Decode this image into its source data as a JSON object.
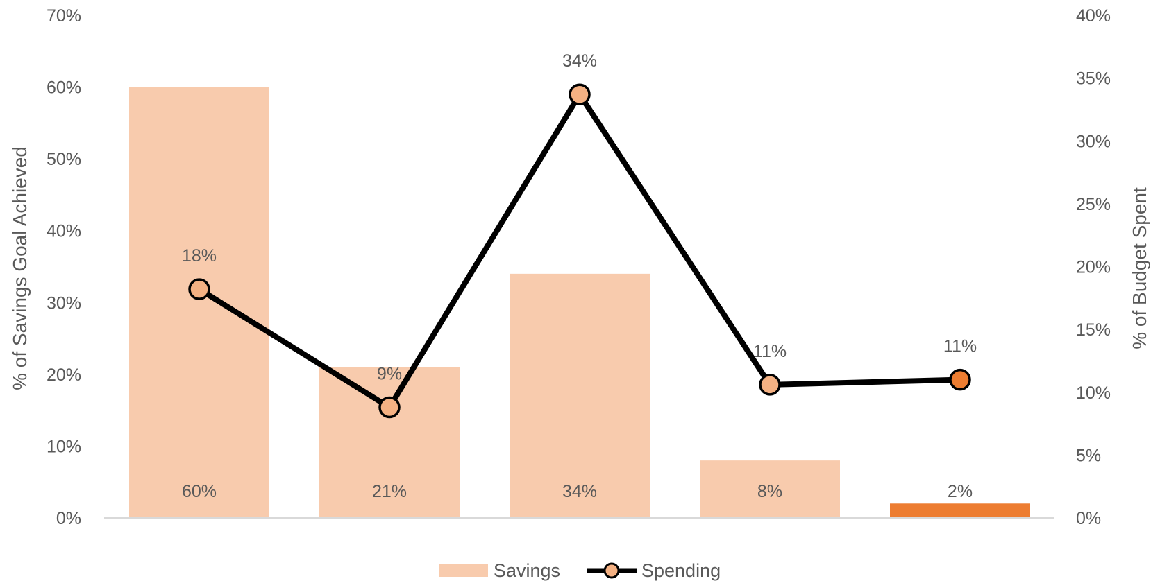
{
  "chart_data": {
    "type": "bar",
    "categories": [
      "",
      "",
      "",
      "",
      ""
    ],
    "ylabel": "% of Savings Goal Achieved",
    "y2label": "% of Budget Spent",
    "ylim": [
      0,
      70
    ],
    "y2lim": [
      0,
      40
    ],
    "yticks": [
      "0%",
      "10%",
      "20%",
      "30%",
      "40%",
      "50%",
      "60%",
      "70%"
    ],
    "y2ticks": [
      "0%",
      "5%",
      "10%",
      "15%",
      "20%",
      "25%",
      "30%",
      "35%",
      "40%"
    ],
    "legend_position": "bottom",
    "gridlines": false,
    "series": [
      {
        "name": "Savings",
        "type": "bar",
        "axis": "left",
        "values": [
          60,
          21,
          34,
          8,
          2
        ],
        "labels": [
          "60%",
          "21%",
          "34%",
          "8%",
          "2%"
        ],
        "color": "#F8CBAD",
        "highlight_index": 4,
        "highlight_color": "#ED7D31"
      },
      {
        "name": "Spending",
        "type": "line",
        "axis": "right",
        "values": [
          18.2,
          8.8,
          33.7,
          10.6,
          11.0
        ],
        "labels": [
          "18%",
          "9%",
          "34%",
          "11%",
          "11%"
        ],
        "line_color": "#000000",
        "marker_color": "#F4B183",
        "highlight_index": 4,
        "highlight_color": "#ED7D31"
      }
    ]
  }
}
